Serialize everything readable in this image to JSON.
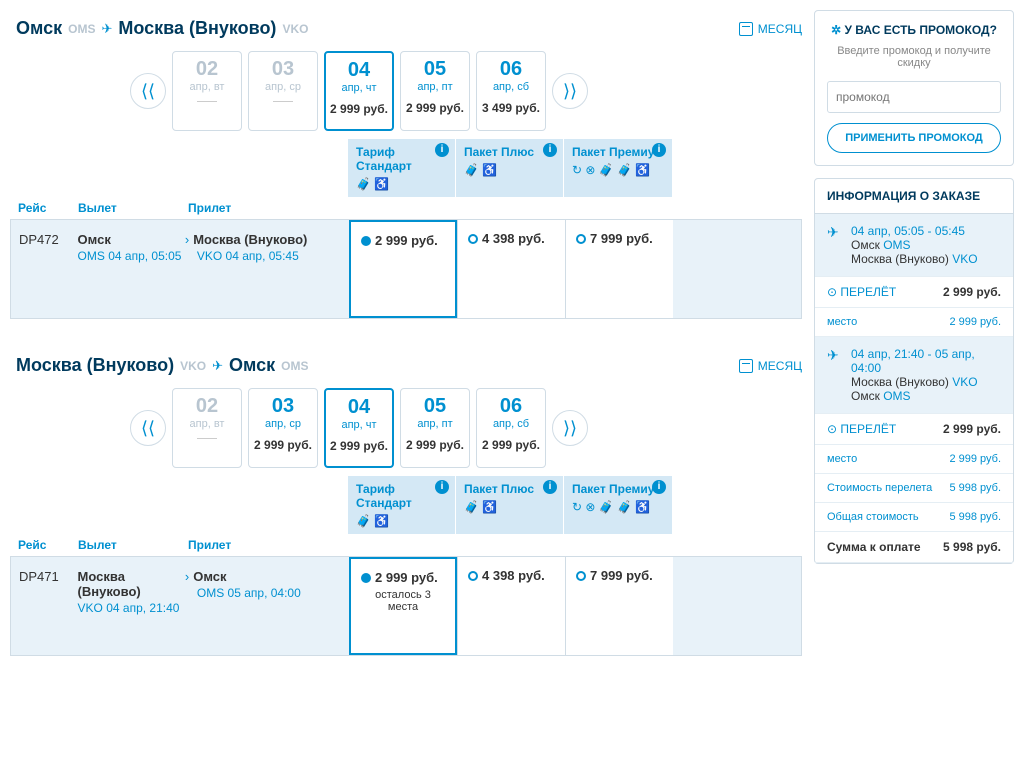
{
  "routes": [
    {
      "from_city": "Омск",
      "from_code": "OMS",
      "to_city": "Москва (Внуково)",
      "to_code": "VKO",
      "month_label": "МЕСЯЦ",
      "dates": [
        {
          "day": "02",
          "dow": "апр, вт",
          "price": "",
          "past": true
        },
        {
          "day": "03",
          "dow": "апр, ср",
          "price": "",
          "past": true
        },
        {
          "day": "04",
          "dow": "апр, чт",
          "price": "2 999 руб.",
          "selected": true
        },
        {
          "day": "05",
          "dow": "апр, пт",
          "price": "2 999 руб."
        },
        {
          "day": "06",
          "dow": "апр, сб",
          "price": "3 499 руб."
        }
      ],
      "tariffs": [
        {
          "name": "Тариф Стандарт",
          "icons": "🧳 ♿"
        },
        {
          "name": "Пакет Плюс",
          "icons": "🧳 ♿"
        },
        {
          "name": "Пакет Премиум",
          "icons": "↻ ⊗ 🧳 🧳 ♿"
        }
      ],
      "cols": {
        "flight": "Рейс",
        "dep": "Вылет",
        "arr": "Прилет"
      },
      "flight": {
        "num": "DP472",
        "dep_city": "Омск",
        "dep_detail": "OMS 04 апр, 05:05",
        "arr_city": "Москва (Внуково)",
        "arr_detail": "VKO 04 апр, 05:45",
        "prices": [
          {
            "val": "2 999 руб.",
            "selected": true
          },
          {
            "val": "4 398 руб."
          },
          {
            "val": "7 999 руб."
          }
        ]
      }
    },
    {
      "from_city": "Москва (Внуково)",
      "from_code": "VKO",
      "to_city": "Омск",
      "to_code": "OMS",
      "month_label": "МЕСЯЦ",
      "dates": [
        {
          "day": "02",
          "dow": "апр, вт",
          "price": "",
          "past": true
        },
        {
          "day": "03",
          "dow": "апр, ср",
          "price": "2 999 руб."
        },
        {
          "day": "04",
          "dow": "апр, чт",
          "price": "2 999 руб.",
          "selected": true
        },
        {
          "day": "05",
          "dow": "апр, пт",
          "price": "2 999 руб."
        },
        {
          "day": "06",
          "dow": "апр, сб",
          "price": "2 999 руб."
        }
      ],
      "tariffs": [
        {
          "name": "Тариф Стандарт",
          "icons": "🧳 ♿"
        },
        {
          "name": "Пакет Плюс",
          "icons": "🧳 ♿"
        },
        {
          "name": "Пакет Премиум",
          "icons": "↻ ⊗ 🧳 🧳 ♿"
        }
      ],
      "cols": {
        "flight": "Рейс",
        "dep": "Вылет",
        "arr": "Прилет"
      },
      "flight": {
        "num": "DP471",
        "dep_city": "Москва (Внуково)",
        "dep_detail": "VKO 04 апр, 21:40",
        "arr_city": "Омск",
        "arr_detail": "OMS 05 апр, 04:00",
        "prices": [
          {
            "val": "2 999 руб.",
            "selected": true,
            "seats": "осталось 3 места"
          },
          {
            "val": "4 398 руб."
          },
          {
            "val": "7 999 руб."
          }
        ]
      }
    }
  ],
  "promo": {
    "title": "У ВАС ЕСТЬ ПРОМОКОД?",
    "sub": "Введите промокод и получите скидку",
    "placeholder": "промокод",
    "btn": "ПРИМЕНИТЬ ПРОМОКОД"
  },
  "order": {
    "title": "ИНФОРМАЦИЯ О ЗАКАЗЕ",
    "segs": [
      {
        "hl": true,
        "time": "04 апр, 05:05 - 05:45",
        "lines": [
          {
            "city": "Омск",
            "code": "OMS"
          },
          {
            "city": "Москва (Внуково)",
            "code": "VKO"
          }
        ]
      },
      {
        "type": "line",
        "lbl": "ПЕРЕЛЁТ",
        "val": "2 999 руб."
      },
      {
        "type": "sub",
        "lbl": "место",
        "val": "2 999 руб."
      },
      {
        "hl": true,
        "time": "04 апр, 21:40 - 05 апр, 04:00",
        "lines": [
          {
            "city": "Москва (Внуково)",
            "code": "VKO"
          },
          {
            "city": "Омск",
            "code": "OMS"
          }
        ]
      },
      {
        "type": "line",
        "lbl": "ПЕРЕЛЁТ",
        "val": "2 999 руб."
      },
      {
        "type": "sub",
        "lbl": "место",
        "val": "2 999 руб."
      },
      {
        "type": "sub",
        "lbl": "Стоимость перелета",
        "val": "5 998 руб."
      },
      {
        "type": "sub",
        "lbl": "Общая стоимость",
        "val": "5 998 руб."
      },
      {
        "type": "total",
        "lbl": "Сумма к оплате",
        "val": "5 998 руб."
      }
    ]
  }
}
